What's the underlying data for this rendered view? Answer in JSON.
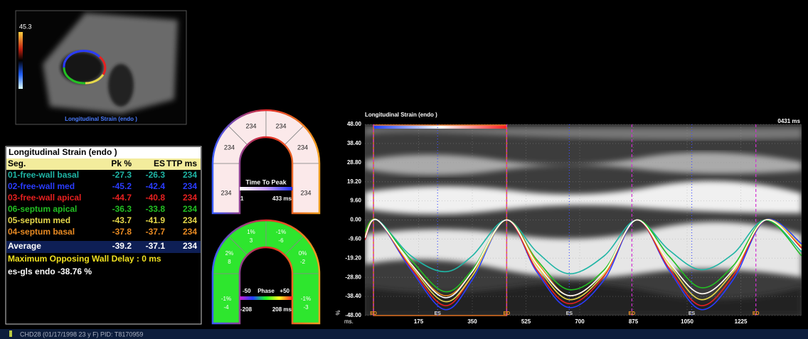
{
  "thumbnail": {
    "scale_value": "45.3",
    "caption": "Longitudinal Strain (endo )"
  },
  "table": {
    "title": "Longitudinal Strain (endo )",
    "header": [
      "Seg.",
      "Pk %",
      "ES",
      "TTP ms"
    ],
    "rows": [
      {
        "segment": "01-free-wall basal",
        "pk": "-27.3",
        "es": "-26.3",
        "ttp": "234",
        "color": "#1fb5a5"
      },
      {
        "segment": "02-free-wall med",
        "pk": "-45.2",
        "es": "-42.4",
        "ttp": "234",
        "color": "#2a3cff"
      },
      {
        "segment": "03-free-wall apical",
        "pk": "-44.7",
        "es": "-40.8",
        "ttp": "234",
        "color": "#e82020"
      },
      {
        "segment": "06-septum apical",
        "pk": "-36.3",
        "es": "-33.8",
        "ttp": "234",
        "color": "#22c022"
      },
      {
        "segment": "05-septum med",
        "pk": "-43.7",
        "es": "-41.9",
        "ttp": "234",
        "color": "#e6d84a"
      },
      {
        "segment": "04-septum basal",
        "pk": "-37.8",
        "es": "-37.7",
        "ttp": "234",
        "color": "#e88a22"
      }
    ],
    "average": {
      "segment": "Average",
      "pk": "-39.2",
      "es": "-37.1",
      "ttp": "234"
    },
    "wall_delay": "Maximum Opposing Wall Delay : 0 ms",
    "gls": "es-gls endo -38.76 %"
  },
  "ttp_map": {
    "segments": [
      "234",
      "234",
      "234",
      "234",
      "234",
      "234"
    ],
    "legend_title": "Time To Peak",
    "min_label": "1",
    "max_label": "433 ms"
  },
  "phase_map": {
    "segments": [
      {
        "pct": "-1%",
        "value": "-4"
      },
      {
        "pct": "2%",
        "value": "8"
      },
      {
        "pct": "1%",
        "value": "3"
      },
      {
        "pct": "-1%",
        "value": "-6"
      },
      {
        "pct": "0%",
        "value": "-2"
      },
      {
        "pct": "-1%",
        "value": "-3"
      }
    ],
    "legend_left": "-50",
    "legend_title": "Phase",
    "legend_right": "+50",
    "min_label": "-208",
    "max_label": "208 ms"
  },
  "chart_data": {
    "type": "line",
    "title": "Longitudinal Strain (endo )",
    "annotation": "0431 ms",
    "x_label": "ms.",
    "y_label": "%",
    "xlim": [
      0,
      1423
    ],
    "ylim": [
      -48,
      48
    ],
    "xticks": [
      175,
      350,
      525,
      700,
      875,
      1050,
      1225
    ],
    "yticks": [
      {
        "value": 48,
        "label": "48.00"
      },
      {
        "value": 38.4,
        "label": "38.40"
      },
      {
        "value": 28.8,
        "label": "28.80"
      },
      {
        "value": 19.2,
        "label": "19.20"
      },
      {
        "value": 9.6,
        "label": "9.60"
      },
      {
        "value": 0,
        "label": "0.00"
      },
      {
        "value": -9.6,
        "label": "-9.60"
      },
      {
        "value": -19.2,
        "label": "-19.20"
      },
      {
        "value": -28.8,
        "label": "-28.80"
      },
      {
        "value": -38.4,
        "label": "-38.40"
      },
      {
        "value": -48,
        "label": "-48.00"
      }
    ],
    "grid": true,
    "x": [
      0,
      40,
      150,
      260,
      350,
      460,
      560,
      665,
      780,
      885,
      990,
      1095,
      1200,
      1305,
      1423
    ],
    "series": [
      {
        "color": "#1fb5a5",
        "values": [
          -8,
          0,
          -18,
          -26,
          -18,
          0,
          -16,
          -27,
          -18,
          0,
          -15,
          -25,
          -17,
          0,
          -16
        ]
      },
      {
        "color": "#2a3cff",
        "values": [
          -10,
          0,
          -25,
          -45,
          -30,
          0,
          -26,
          -44,
          -30,
          0,
          -25,
          -45,
          -30,
          0,
          -12
        ]
      },
      {
        "color": "#e82020",
        "values": [
          -10,
          0,
          -24,
          -43,
          -28,
          0,
          -25,
          -42,
          -28,
          0,
          -24,
          -43,
          -28,
          0,
          -14
        ]
      },
      {
        "color": "#22c022",
        "values": [
          -6,
          0,
          -20,
          -36,
          -25,
          0,
          -20,
          -35,
          -25,
          0,
          -18,
          -34,
          -23,
          0,
          -18
        ]
      },
      {
        "color": "#e6d84a",
        "values": [
          -9,
          0,
          -23,
          -41,
          -28,
          0,
          -23,
          -40,
          -27,
          0,
          -22,
          -40,
          -26,
          0,
          -13
        ]
      },
      {
        "color": "#e88a22",
        "values": [
          -8,
          0,
          -22,
          -38,
          -26,
          0,
          -21,
          -38,
          -26,
          0,
          -21,
          -37,
          -25,
          0,
          -15
        ]
      },
      {
        "color": "#ffffff",
        "values": [
          -9,
          0,
          -22,
          -39,
          -26,
          0,
          -22,
          -38,
          -26,
          0,
          -21,
          -37,
          -25,
          0,
          -15
        ]
      }
    ],
    "events": [
      {
        "label": "ED",
        "x": 28
      },
      {
        "label": "ES",
        "x": 237
      },
      {
        "label": "ED",
        "x": 462
      },
      {
        "label": "ES",
        "x": 666
      },
      {
        "label": "ED",
        "x": 870
      },
      {
        "label": "ES",
        "x": 1065
      },
      {
        "label": "ED",
        "x": 1274
      }
    ]
  },
  "status_bar": {
    "patient": "CHD28 (01/17/1998 23 y F) PID: T8170959"
  }
}
